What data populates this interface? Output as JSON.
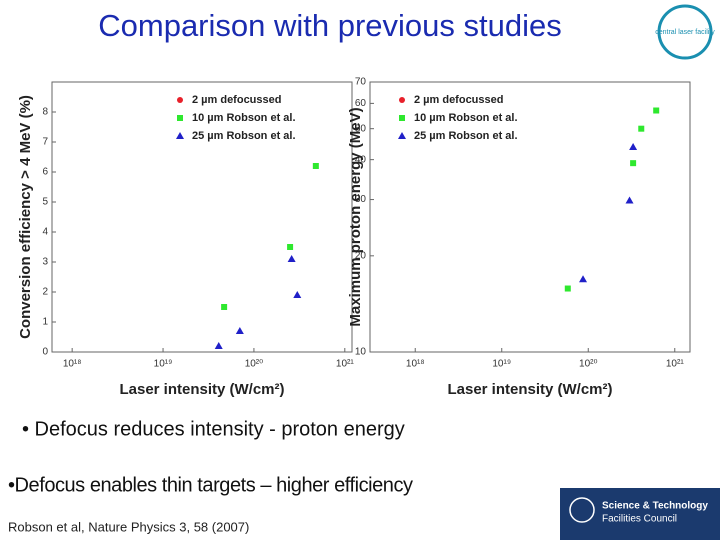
{
  "title": "Comparison with previous studies",
  "bullets": [
    "• Defocus reduces intensity - proton energy",
    "•Defocus enables thin targets – higher efficiency"
  ],
  "citation": "Robson et al, Nature Physics 3, 58 (2007)",
  "logo_top": "central laser facility",
  "logo_bottom": [
    "Science & Technology",
    "Facilities Council"
  ],
  "chart_data": [
    {
      "type": "scatter",
      "xlabel": "Laser intensity (W/cm²)",
      "ylabel": "Conversion efficiency > 4 MeV (%)",
      "xscale": "log",
      "xlim": [
        6e+17,
        1.2e+21
      ],
      "xticks": [
        {
          "value": 1e+18,
          "label": "10¹⁸"
        },
        {
          "value": 1e+19,
          "label": "10¹⁹"
        },
        {
          "value": 1e+20,
          "label": "10²⁰"
        },
        {
          "value": 1e+21,
          "label": "10²¹"
        }
      ],
      "ylim": [
        0,
        9
      ],
      "yticks": [
        0,
        1,
        2,
        3,
        4,
        5,
        6,
        7,
        8
      ],
      "legend": "upper center",
      "series": [
        {
          "name": "2 µm defocussed",
          "color": "#e8202a",
          "marker": "circle",
          "x": [],
          "values": []
        },
        {
          "name": "10 µm Robson et al.",
          "color": "#2ee82e",
          "marker": "square",
          "x": [
            4.7e+19,
            2.5e+20,
            4.8e+20
          ],
          "values": [
            1.5,
            3.5,
            6.2
          ]
        },
        {
          "name": "25 µm Robson et al.",
          "color": "#2020c8",
          "marker": "triangle",
          "x": [
            4.1e+19,
            7e+19,
            2.6e+20,
            3e+20
          ],
          "values": [
            0.2,
            0.7,
            3.1,
            1.9
          ]
        }
      ]
    },
    {
      "type": "scatter",
      "xlabel": "Laser intensity (W/cm²)",
      "ylabel": "Maximum proton energy (MeV)",
      "xscale": "log",
      "yscale": "log",
      "xlim": [
        3e+17,
        1.5e+21
      ],
      "xticks": [
        {
          "value": 1e+18,
          "label": "10¹⁸"
        },
        {
          "value": 1e+19,
          "label": "10¹⁹"
        },
        {
          "value": 1e+20,
          "label": "10²⁰"
        },
        {
          "value": 1e+21,
          "label": "10²¹"
        }
      ],
      "ylim": [
        10,
        70
      ],
      "yticks": [
        10,
        20,
        30,
        40,
        50,
        60,
        70
      ],
      "legend": "upper left",
      "series": [
        {
          "name": "2 µm defocussed",
          "color": "#e8202a",
          "marker": "circle",
          "x": [],
          "values": []
        },
        {
          "name": "10 µm Robson et al.",
          "color": "#2ee82e",
          "marker": "square",
          "x": [
            5.8e+19,
            3.3e+20,
            4.1e+20,
            6.1e+20
          ],
          "values": [
            15.8,
            39,
            50,
            57
          ]
        },
        {
          "name": "25 µm Robson et al.",
          "color": "#2020c8",
          "marker": "triangle",
          "x": [
            8.7e+19,
            3e+20,
            3.3e+20
          ],
          "values": [
            16.9,
            29.8,
            43.8
          ]
        }
      ]
    }
  ]
}
